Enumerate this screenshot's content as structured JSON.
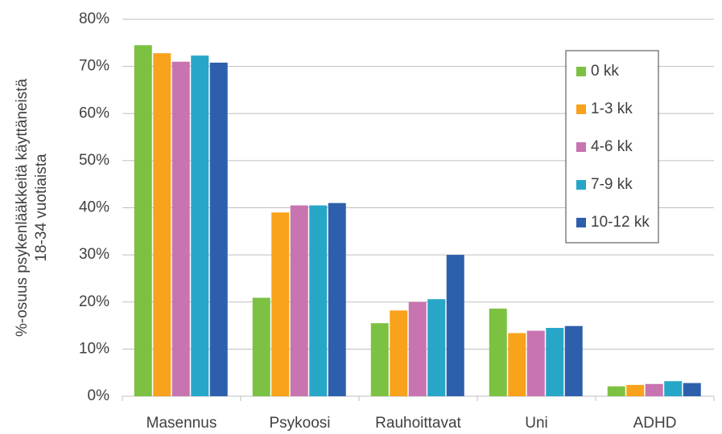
{
  "chart_data": {
    "type": "bar",
    "ylabel": [
      "%-osuus psykenlääkkeitä käyttäneistä",
      "18-34 vuotiaista"
    ],
    "categories": [
      "Masennus",
      "Psykoosi",
      "Rauhoittavat",
      "Uni",
      "ADHD"
    ],
    "series": [
      {
        "name": "0 kk",
        "color": "#7dc142",
        "values": [
          74.5,
          20.9,
          15.5,
          18.6,
          2.1
        ]
      },
      {
        "name": "1-3 kk",
        "color": "#f9a21b",
        "values": [
          72.8,
          39.0,
          18.2,
          13.4,
          2.4
        ]
      },
      {
        "name": "4-6 kk",
        "color": "#c874b0",
        "values": [
          71.0,
          40.5,
          20.0,
          13.9,
          2.6
        ]
      },
      {
        "name": "7-9 kk",
        "color": "#27a6c8",
        "values": [
          72.3,
          40.5,
          20.6,
          14.5,
          3.2
        ]
      },
      {
        "name": "10-12 kk",
        "color": "#2e5fac",
        "values": [
          70.8,
          41.0,
          30.0,
          14.9,
          2.8
        ]
      }
    ],
    "ylim": [
      0,
      80
    ],
    "yticks": [
      {
        "value": 0,
        "label": "0%"
      },
      {
        "value": 10,
        "label": "10%"
      },
      {
        "value": 20,
        "label": "20%"
      },
      {
        "value": 30,
        "label": "30%"
      },
      {
        "value": 40,
        "label": "40%"
      },
      {
        "value": 50,
        "label": "50%"
      },
      {
        "value": 60,
        "label": "60%"
      },
      {
        "value": 70,
        "label": "70%"
      },
      {
        "value": 80,
        "label": "80%"
      }
    ],
    "grid": true,
    "legend": "upper right"
  }
}
